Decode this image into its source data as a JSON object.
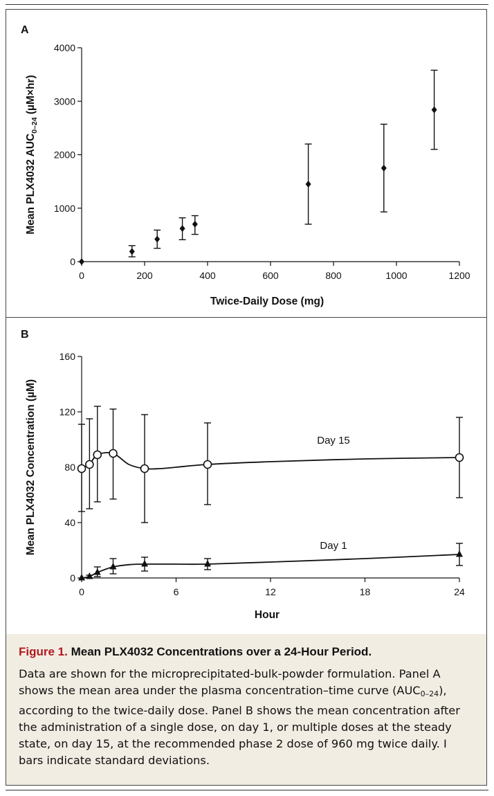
{
  "chart_data": [
    {
      "panel": "A",
      "type": "scatter",
      "xlabel": "Twice-Daily Dose (mg)",
      "ylabel": "Mean PLX4032 AUC",
      "ylabel_sub": "0–24",
      "ylabel_unit": " (µM×hr)",
      "xlim": [
        0,
        1200
      ],
      "ylim": [
        0,
        4000
      ],
      "xticks": [
        0,
        200,
        400,
        600,
        800,
        1000,
        1200
      ],
      "yticks": [
        0,
        1000,
        2000,
        3000,
        4000
      ],
      "grid": false,
      "series": [
        {
          "marker": "diamond",
          "points": [
            {
              "x": 0,
              "y": 0,
              "lo": 0,
              "hi": 0
            },
            {
              "x": 160,
              "y": 190,
              "lo": 90,
              "hi": 300
            },
            {
              "x": 240,
              "y": 420,
              "lo": 250,
              "hi": 590
            },
            {
              "x": 320,
              "y": 620,
              "lo": 410,
              "hi": 820
            },
            {
              "x": 360,
              "y": 700,
              "lo": 510,
              "hi": 860
            },
            {
              "x": 720,
              "y": 1450,
              "lo": 700,
              "hi": 2200
            },
            {
              "x": 960,
              "y": 1750,
              "lo": 930,
              "hi": 2570
            },
            {
              "x": 1120,
              "y": 2840,
              "lo": 2100,
              "hi": 3580
            }
          ]
        }
      ]
    },
    {
      "panel": "B",
      "type": "line",
      "xlabel": "Hour",
      "ylabel": "Mean PLX4032 Concentration (µM)",
      "xlim": [
        0,
        24
      ],
      "ylim": [
        0,
        160
      ],
      "xticks": [
        0,
        6,
        12,
        18,
        24
      ],
      "yticks": [
        0,
        40,
        80,
        120,
        160
      ],
      "grid": false,
      "series": [
        {
          "name": "Day 15",
          "marker": "open-circle",
          "points": [
            {
              "x": 0,
              "y": 79,
              "lo": 48,
              "hi": 111
            },
            {
              "x": 0.5,
              "y": 82,
              "lo": 50,
              "hi": 115
            },
            {
              "x": 1,
              "y": 89,
              "lo": 55,
              "hi": 124
            },
            {
              "x": 2,
              "y": 90,
              "lo": 57,
              "hi": 122
            },
            {
              "x": 4,
              "y": 79,
              "lo": 40,
              "hi": 118
            },
            {
              "x": 8,
              "y": 82,
              "lo": 53,
              "hi": 112
            },
            {
              "x": 24,
              "y": 87,
              "lo": 58,
              "hi": 116
            }
          ],
          "curve": [
            [
              0,
              79
            ],
            [
              0.5,
              82
            ],
            [
              1,
              89
            ],
            [
              2,
              90
            ],
            [
              3,
              82
            ],
            [
              4,
              79
            ],
            [
              5,
              79
            ],
            [
              6,
              80
            ],
            [
              8,
              82
            ],
            [
              12,
              84
            ],
            [
              18,
              86
            ],
            [
              24,
              87
            ]
          ]
        },
        {
          "name": "Day 1",
          "marker": "filled-triangle",
          "points": [
            {
              "x": 0,
              "y": 0,
              "lo": 0,
              "hi": 0
            },
            {
              "x": 0.5,
              "y": 1,
              "lo": 0,
              "hi": 2
            },
            {
              "x": 1,
              "y": 4,
              "lo": 1,
              "hi": 8
            },
            {
              "x": 2,
              "y": 8,
              "lo": 3,
              "hi": 14
            },
            {
              "x": 4,
              "y": 10,
              "lo": 5,
              "hi": 15
            },
            {
              "x": 8,
              "y": 10,
              "lo": 6,
              "hi": 14
            },
            {
              "x": 24,
              "y": 17,
              "lo": 9,
              "hi": 25
            }
          ],
          "curve": [
            [
              0,
              0
            ],
            [
              0.5,
              1
            ],
            [
              1,
              4
            ],
            [
              2,
              8
            ],
            [
              3,
              9.6
            ],
            [
              4,
              10
            ],
            [
              6,
              10
            ],
            [
              8,
              10
            ],
            [
              12,
              11.5
            ],
            [
              18,
              14
            ],
            [
              24,
              17
            ]
          ]
        }
      ]
    }
  ],
  "caption": {
    "figure_label": "Figure 1.",
    "title": "Mean PLX4032 Concentrations over a 24-Hour Period.",
    "body_before": "Data are shown for the microprecipitated-bulk-powder formulation. Panel A shows the mean area under the plasma concentration–time curve (AUC",
    "body_sub": "0–24",
    "body_after": "), according to the twice-daily dose. Panel B shows the mean concentration after the administration of a single dose, on day 1, or multiple doses at the steady state, on day 15, at the recommended phase 2 dose of 960 mg twice daily. I bars indicate standard deviations."
  }
}
